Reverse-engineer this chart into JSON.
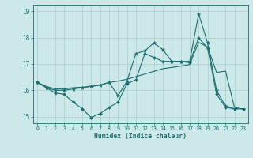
{
  "xlabel": "Humidex (Indice chaleur)",
  "bg_color": "#cce8e8",
  "grid_color": "#aacccc",
  "line_color": "#1a6e6e",
  "xlim": [
    -0.5,
    23.5
  ],
  "ylim": [
    14.75,
    19.25
  ],
  "yticks": [
    15,
    16,
    17,
    18,
    19
  ],
  "xticks": [
    0,
    1,
    2,
    3,
    4,
    5,
    6,
    7,
    8,
    9,
    10,
    11,
    12,
    13,
    14,
    15,
    16,
    17,
    18,
    19,
    20,
    21,
    22,
    23
  ],
  "line1_x": [
    0,
    1,
    2,
    3,
    4,
    5,
    6,
    7,
    8,
    9,
    10,
    11,
    12,
    13,
    14,
    15,
    16,
    17,
    18,
    19,
    20,
    21,
    22,
    23
  ],
  "line1_y": [
    16.3,
    16.1,
    15.9,
    15.85,
    15.55,
    15.3,
    14.97,
    15.12,
    15.35,
    15.55,
    16.25,
    16.4,
    17.4,
    17.25,
    17.1,
    17.1,
    17.1,
    17.05,
    18.0,
    17.6,
    15.85,
    15.35,
    15.3,
    15.3
  ],
  "line2_x": [
    0,
    1,
    2,
    3,
    4,
    5,
    6,
    7,
    8,
    9,
    10,
    11,
    12,
    13,
    14,
    15,
    16,
    17,
    18,
    19,
    20,
    21,
    22,
    23
  ],
  "line2_y": [
    16.3,
    16.15,
    16.05,
    16.05,
    16.1,
    16.12,
    16.15,
    16.2,
    16.3,
    16.35,
    16.42,
    16.52,
    16.62,
    16.72,
    16.82,
    16.87,
    16.92,
    16.98,
    17.82,
    17.65,
    16.68,
    16.73,
    15.35,
    15.28
  ],
  "line3_x": [
    0,
    1,
    2,
    3,
    4,
    5,
    6,
    7,
    8,
    9,
    10,
    11,
    12,
    13,
    14,
    15,
    16,
    17,
    18,
    19,
    20,
    21,
    22,
    23
  ],
  "line3_y": [
    16.3,
    16.1,
    16.0,
    16.0,
    16.05,
    16.1,
    16.15,
    16.2,
    16.3,
    15.8,
    16.35,
    17.4,
    17.5,
    17.8,
    17.55,
    17.1,
    17.1,
    17.1,
    18.9,
    17.8,
    16.0,
    15.4,
    15.3,
    15.3
  ]
}
